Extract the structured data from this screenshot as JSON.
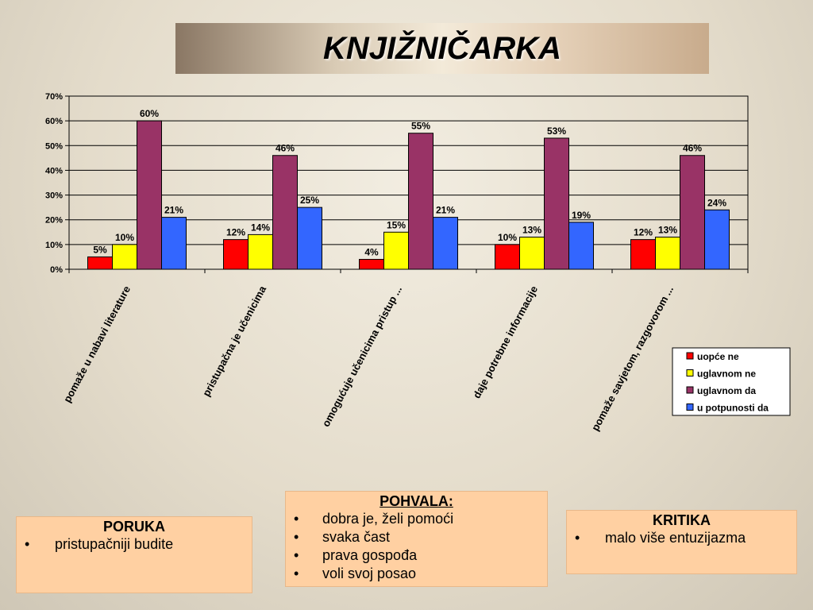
{
  "slide": {
    "title": "KNJIŽNIČARKA"
  },
  "colors": {
    "uopce_ne": "#ff0000",
    "uglavnom_ne": "#ffff00",
    "uglavnom_da": "#993366",
    "u_potpunosti_da": "#3366ff",
    "box_fill": "#ffd0a2"
  },
  "chart_data": {
    "type": "bar",
    "categories": [
      "pomaže u nabavi literature",
      "pristupačna je učenicima",
      "omogućuje učenicima pristup ...",
      "daje potrebne informacije",
      "pomaže savjetom, razgovorom ..."
    ],
    "series": [
      {
        "name": "uopće ne",
        "color": "#ff0000",
        "values": [
          5,
          12,
          4,
          10,
          12
        ],
        "labels": [
          "5%",
          "12%",
          "4%",
          "10%",
          "12%"
        ]
      },
      {
        "name": "uglavnom ne",
        "color": "#ffff00",
        "values": [
          10,
          14,
          15,
          13,
          13
        ],
        "labels": [
          "10%",
          "14%",
          "15%",
          "13%",
          "13%"
        ]
      },
      {
        "name": "uglavnom da",
        "color": "#993366",
        "values": [
          60,
          46,
          55,
          53,
          46
        ],
        "labels": [
          "60%",
          "46%",
          "55%",
          "53%",
          "46%"
        ]
      },
      {
        "name": "u potpunosti da",
        "color": "#3366ff",
        "values": [
          21,
          25,
          21,
          19,
          24
        ],
        "labels": [
          "21%",
          "25%",
          "21%",
          "19%",
          "24%"
        ]
      }
    ],
    "yticks": [
      "0%",
      "10%",
      "20%",
      "30%",
      "40%",
      "50%",
      "60%",
      "70%"
    ],
    "ylim": [
      0,
      70
    ],
    "grid": true,
    "legend_position": "right"
  },
  "boxes": {
    "poruka": {
      "heading": "PORUKA",
      "items": [
        "pristupačniji budite"
      ]
    },
    "pohvala": {
      "heading": "POHVALA:",
      "items": [
        "dobra je, želi pomoći",
        "svaka čast",
        "prava gospođa",
        "voli svoj posao"
      ]
    },
    "kritika": {
      "heading": "KRITIKA",
      "items": [
        "malo više entuzijazma"
      ]
    }
  }
}
